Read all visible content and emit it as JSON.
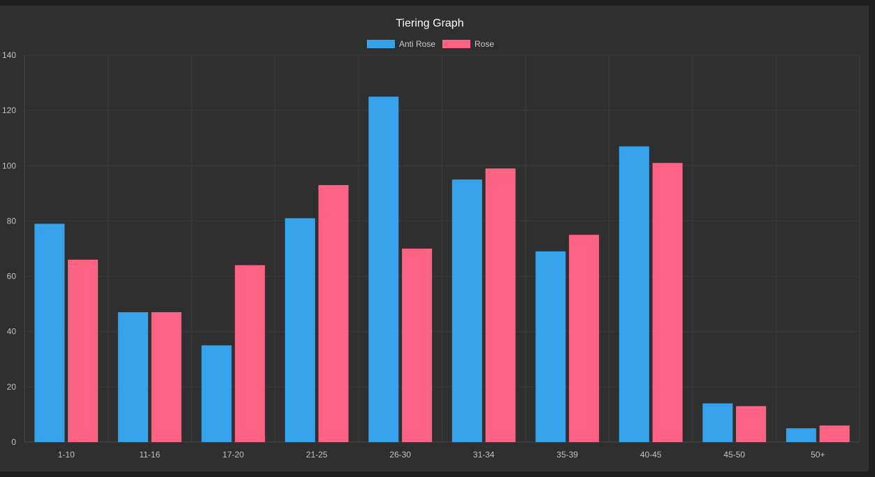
{
  "chart_data": {
    "type": "bar",
    "title": "Tiering Graph",
    "categories": [
      "1-10",
      "11-16",
      "17-20",
      "21-25",
      "26-30",
      "31-34",
      "35-39",
      "40-45",
      "45-50",
      "50+"
    ],
    "series": [
      {
        "name": "Anti Rose",
        "color": "#36a2eb",
        "values": [
          79,
          47,
          35,
          81,
          125,
          95,
          69,
          107,
          14,
          5
        ]
      },
      {
        "name": "Rose",
        "color": "#ff6384",
        "values": [
          66,
          47,
          64,
          93,
          70,
          99,
          75,
          101,
          13,
          6
        ]
      }
    ],
    "ylim": [
      0,
      140
    ],
    "yticks": [
      "0",
      "20",
      "40",
      "60",
      "80",
      "100",
      "120",
      "140"
    ],
    "legend": "top-center",
    "grid": true
  }
}
